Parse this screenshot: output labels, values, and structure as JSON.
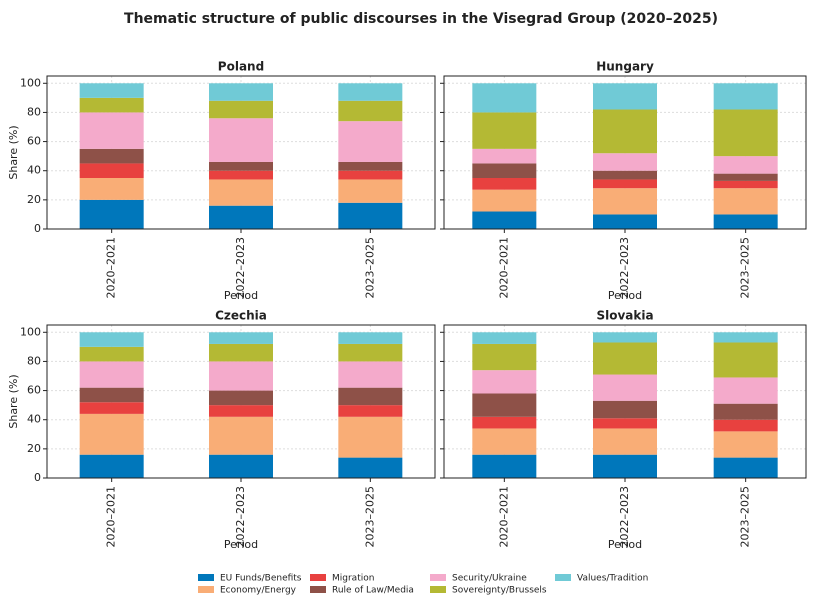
{
  "title": "Thematic structure of public discourses in the Visegrad Group (2020–2025)",
  "chart_data": [
    {
      "type": "bar",
      "stacked": true,
      "title": "Poland",
      "xlabel": "Period",
      "ylabel": "Share (%)",
      "grid": true,
      "categories": [
        "2020–2021",
        "2022–2023",
        "2023–2025"
      ],
      "ylim": [
        0,
        105
      ],
      "yticks": [
        0,
        20,
        40,
        60,
        80,
        100
      ],
      "series": [
        {
          "name": "EU Funds/Benefits",
          "color": "#0077bb",
          "values": [
            20,
            16,
            18
          ]
        },
        {
          "name": "Economy/Energy",
          "color": "#f9ad76",
          "values": [
            15,
            18,
            16
          ]
        },
        {
          "name": "Migration",
          "color": "#e8413f",
          "values": [
            10,
            6,
            6
          ]
        },
        {
          "name": "Rule of Law/Media",
          "color": "#8e5148",
          "values": [
            10,
            6,
            6
          ]
        },
        {
          "name": "Security/Ukraine",
          "color": "#f4aacb",
          "values": [
            25,
            30,
            28
          ]
        },
        {
          "name": "Sovereignty/Brussels",
          "color": "#b4b934",
          "values": [
            10,
            12,
            14
          ]
        },
        {
          "name": "Values/Tradition",
          "color": "#70cad6",
          "values": [
            10,
            12,
            12
          ]
        }
      ]
    },
    {
      "type": "bar",
      "stacked": true,
      "title": "Hungary",
      "xlabel": "Period",
      "grid": true,
      "categories": [
        "2020–2021",
        "2022–2023",
        "2023–2025"
      ],
      "ylim": [
        0,
        105
      ],
      "series": [
        {
          "name": "EU Funds/Benefits",
          "color": "#0077bb",
          "values": [
            12,
            10,
            10
          ]
        },
        {
          "name": "Economy/Energy",
          "color": "#f9ad76",
          "values": [
            15,
            18,
            18
          ]
        },
        {
          "name": "Migration",
          "color": "#e8413f",
          "values": [
            8,
            6,
            5
          ]
        },
        {
          "name": "Rule of Law/Media",
          "color": "#8e5148",
          "values": [
            10,
            6,
            5
          ]
        },
        {
          "name": "Security/Ukraine",
          "color": "#f4aacb",
          "values": [
            10,
            12,
            12
          ]
        },
        {
          "name": "Sovereignty/Brussels",
          "color": "#b4b934",
          "values": [
            25,
            30,
            32
          ]
        },
        {
          "name": "Values/Tradition",
          "color": "#70cad6",
          "values": [
            20,
            18,
            18
          ]
        }
      ]
    },
    {
      "type": "bar",
      "stacked": true,
      "title": "Czechia",
      "xlabel": "Period",
      "ylabel": "Share (%)",
      "grid": true,
      "categories": [
        "2020–2021",
        "2022–2023",
        "2023–2025"
      ],
      "ylim": [
        0,
        105
      ],
      "yticks": [
        0,
        20,
        40,
        60,
        80,
        100
      ],
      "series": [
        {
          "name": "EU Funds/Benefits",
          "color": "#0077bb",
          "values": [
            16,
            16,
            14
          ]
        },
        {
          "name": "Economy/Energy",
          "color": "#f9ad76",
          "values": [
            28,
            26,
            28
          ]
        },
        {
          "name": "Migration",
          "color": "#e8413f",
          "values": [
            8,
            8,
            8
          ]
        },
        {
          "name": "Rule of Law/Media",
          "color": "#8e5148",
          "values": [
            10,
            10,
            12
          ]
        },
        {
          "name": "Security/Ukraine",
          "color": "#f4aacb",
          "values": [
            18,
            20,
            18
          ]
        },
        {
          "name": "Sovereignty/Brussels",
          "color": "#b4b934",
          "values": [
            10,
            12,
            12
          ]
        },
        {
          "name": "Values/Tradition",
          "color": "#70cad6",
          "values": [
            10,
            8,
            8
          ]
        }
      ]
    },
    {
      "type": "bar",
      "stacked": true,
      "title": "Slovakia",
      "xlabel": "Period",
      "grid": true,
      "categories": [
        "2020–2021",
        "2022–2023",
        "2023–2025"
      ],
      "ylim": [
        0,
        105
      ],
      "series": [
        {
          "name": "EU Funds/Benefits",
          "color": "#0077bb",
          "values": [
            16,
            16,
            14
          ]
        },
        {
          "name": "Economy/Energy",
          "color": "#f9ad76",
          "values": [
            18,
            18,
            18
          ]
        },
        {
          "name": "Migration",
          "color": "#e8413f",
          "values": [
            8,
            7,
            8
          ]
        },
        {
          "name": "Rule of Law/Media",
          "color": "#8e5148",
          "values": [
            16,
            12,
            11
          ]
        },
        {
          "name": "Security/Ukraine",
          "color": "#f4aacb",
          "values": [
            16,
            18,
            18
          ]
        },
        {
          "name": "Sovereignty/Brussels",
          "color": "#b4b934",
          "values": [
            18,
            22,
            24
          ]
        },
        {
          "name": "Values/Tradition",
          "color": "#70cad6",
          "values": [
            8,
            7,
            7
          ]
        }
      ]
    }
  ]
}
